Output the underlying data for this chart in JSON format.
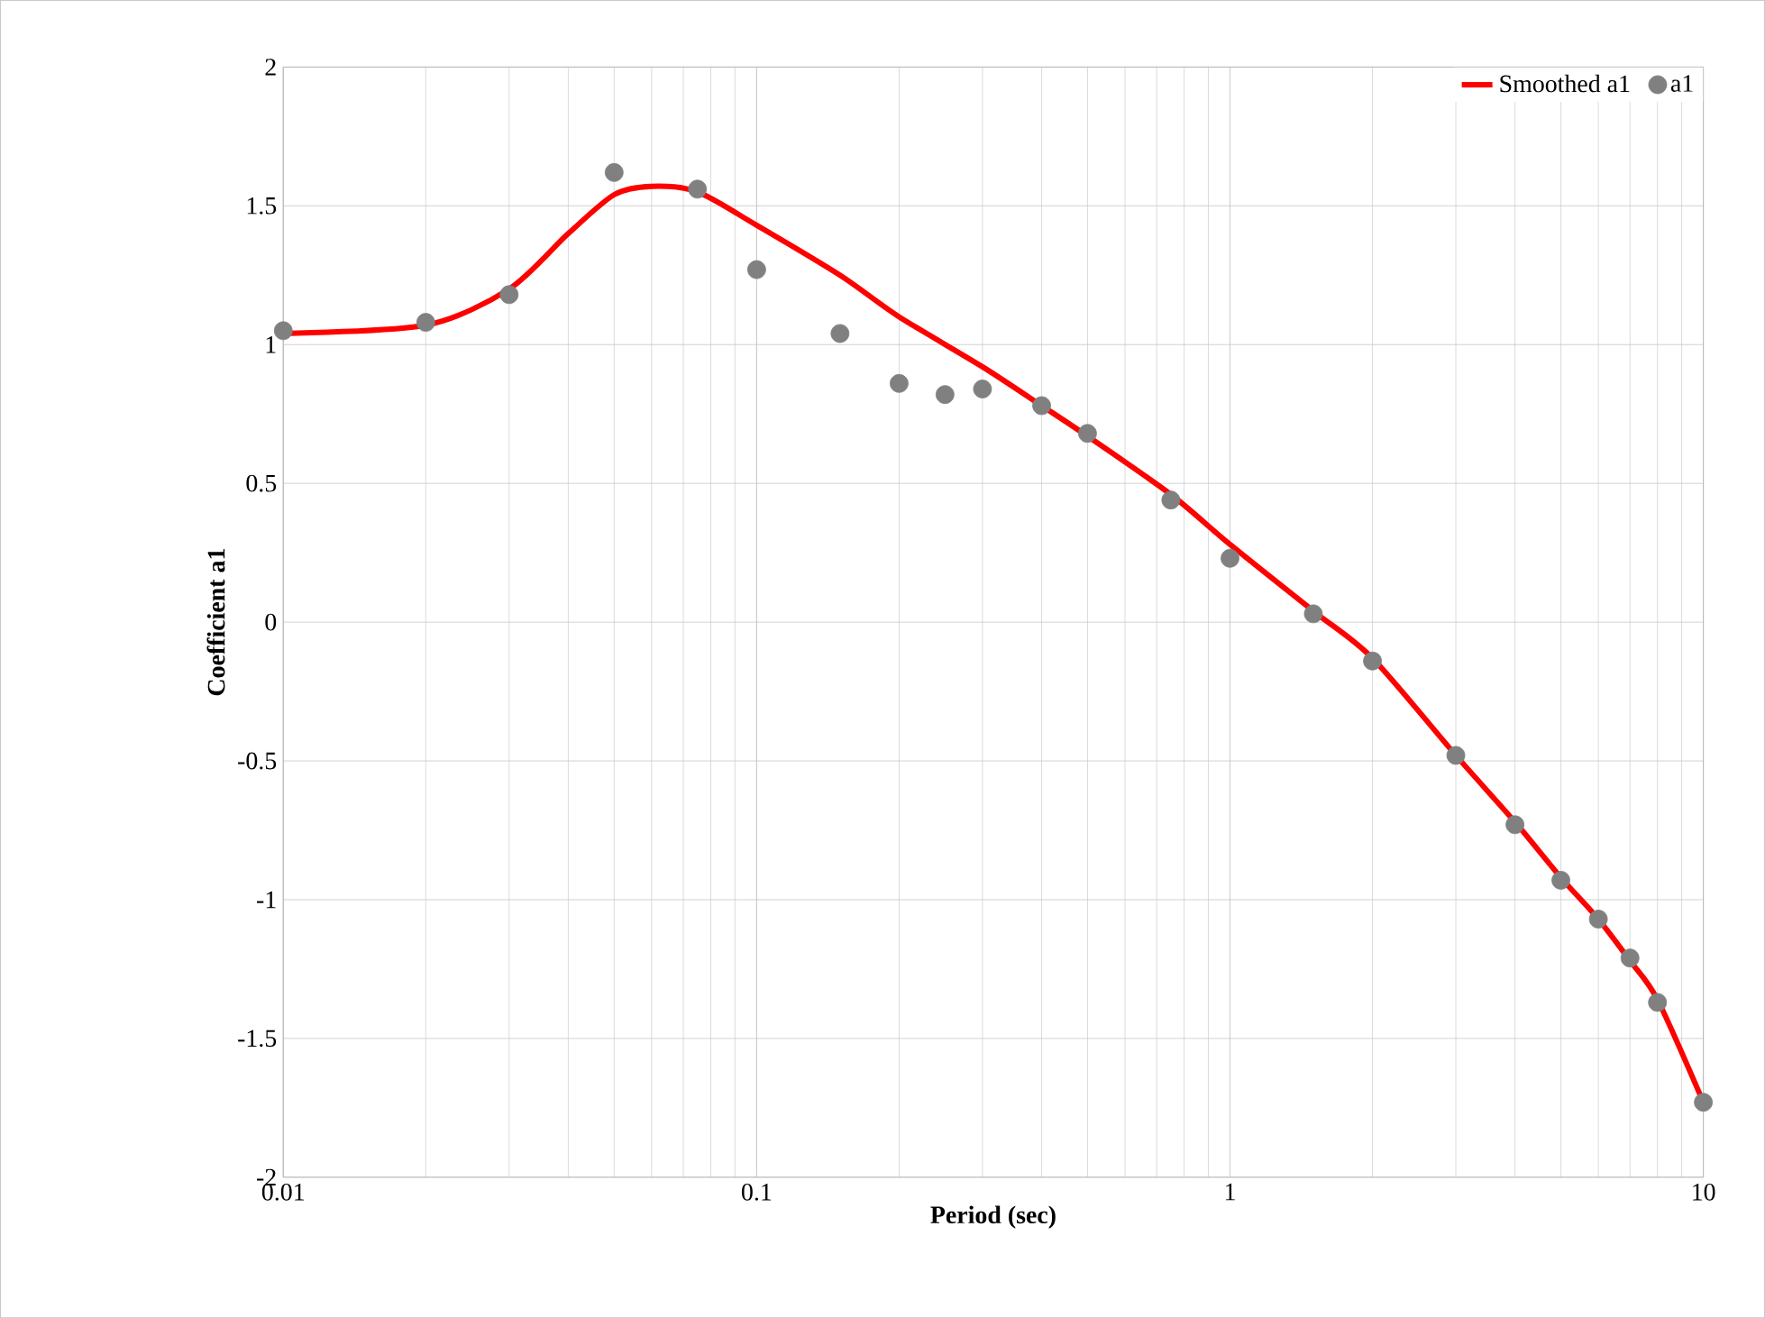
{
  "chart_data": {
    "type": "line",
    "xlabel": "Period (sec)",
    "ylabel": "Coefficient a1",
    "log": "x",
    "grid": true,
    "legend": "top right",
    "xlim": [
      0.01,
      10
    ],
    "xticks": [
      0.01,
      0.1,
      1,
      10
    ],
    "ylim": [
      -2,
      2
    ],
    "yticks": [
      -2,
      -1.5,
      -1,
      -0.5,
      0,
      0.5,
      1,
      1.5,
      2
    ],
    "series": [
      {
        "name": "Smoothed a1",
        "color": "#ff0000",
        "marker": "none",
        "line_style": "solid",
        "x": [
          0.01,
          0.02,
          0.03,
          0.04,
          0.05,
          0.06,
          0.075,
          0.1,
          0.15,
          0.2,
          0.3,
          0.4,
          0.5,
          0.75,
          1,
          1.5,
          2,
          3,
          4,
          5,
          6,
          7,
          8,
          10
        ],
        "values": [
          1.04,
          1.07,
          1.2,
          1.4,
          1.54,
          1.57,
          1.55,
          1.43,
          1.25,
          1.1,
          0.92,
          0.78,
          0.67,
          0.46,
          0.28,
          0.04,
          -0.13,
          -0.48,
          -0.72,
          -0.92,
          -1.07,
          -1.22,
          -1.36,
          -1.73
        ]
      },
      {
        "name": "a1",
        "type": "scatter",
        "color": "#808080",
        "marker": "circle",
        "x": [
          0.01,
          0.02,
          0.03,
          0.05,
          0.075,
          0.1,
          0.15,
          0.2,
          0.25,
          0.3,
          0.4,
          0.5,
          0.75,
          1,
          1.5,
          2,
          3,
          4,
          5,
          6,
          7,
          8,
          10
        ],
        "values": [
          1.05,
          1.08,
          1.18,
          1.62,
          1.56,
          1.27,
          1.04,
          0.86,
          0.82,
          0.84,
          0.78,
          0.68,
          0.44,
          0.23,
          0.03,
          -0.14,
          -0.48,
          -0.73,
          -0.93,
          -1.07,
          -1.21,
          -1.37,
          -1.73
        ]
      }
    ]
  }
}
